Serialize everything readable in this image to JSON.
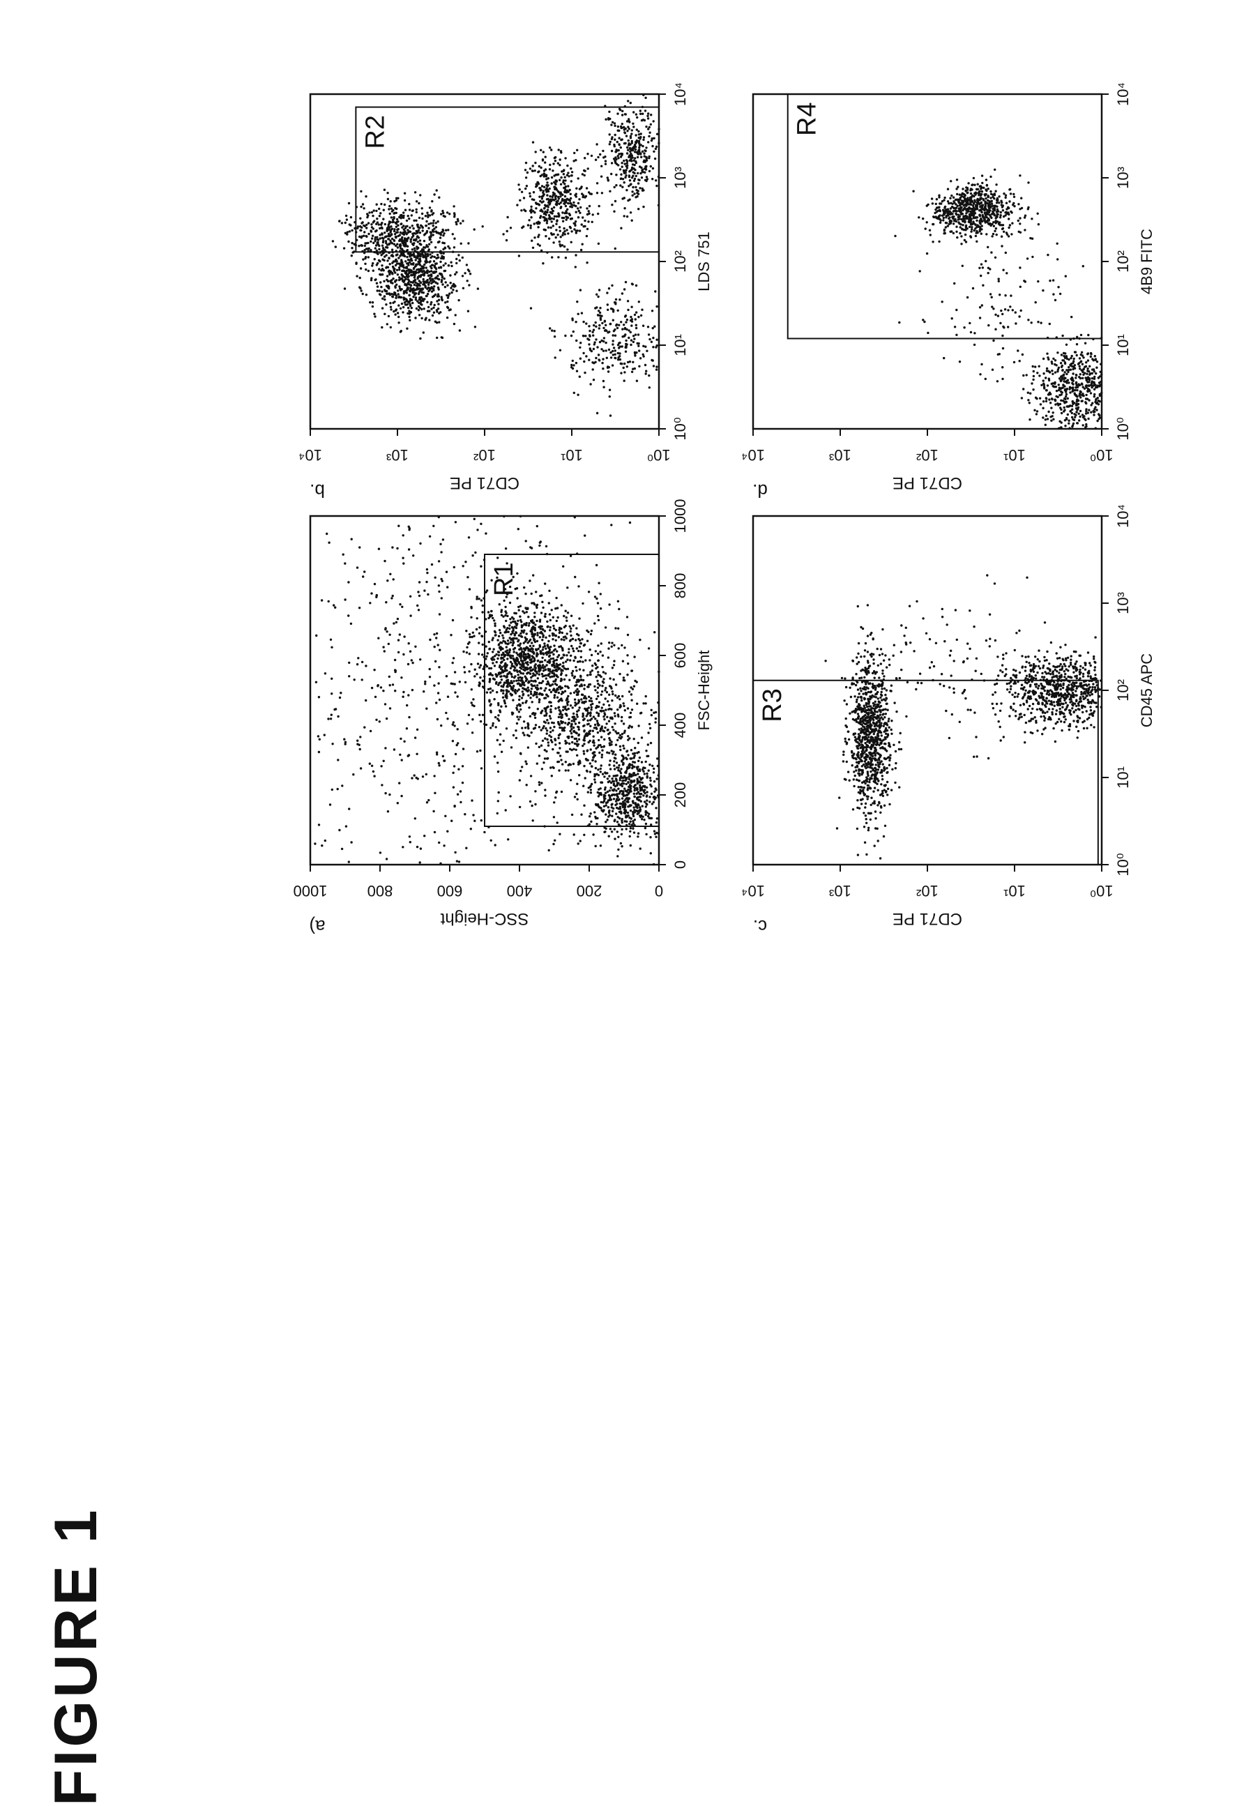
{
  "figure_title": "FIGURE 1",
  "chart_data": [
    {
      "type": "scatter",
      "panel_label": "a)",
      "xlabel": "FSC-Height",
      "ylabel": "SSC-Height",
      "xlim": [
        0,
        1000
      ],
      "ylim": [
        0,
        1000
      ],
      "x_scale": "linear",
      "y_scale": "linear",
      "x_ticks": [
        "0",
        "200",
        "400",
        "600",
        "800",
        "1000"
      ],
      "y_ticks": [
        "0",
        "200",
        "400",
        "600",
        "800",
        "1000"
      ],
      "gates": [
        {
          "label": "R1",
          "x": [
            110,
            890
          ],
          "y": [
            0,
            500
          ]
        }
      ],
      "clusters": [
        {
          "x": 580,
          "y": 380,
          "spread_x": 90,
          "spread_y": 70,
          "count": 900
        },
        {
          "x": 420,
          "y": 200,
          "spread_x": 120,
          "spread_y": 80,
          "count": 700
        },
        {
          "x": 200,
          "y": 90,
          "spread_x": 60,
          "spread_y": 50,
          "count": 500
        },
        {
          "x": 500,
          "y": 600,
          "spread_x": 300,
          "spread_y": 280,
          "count": 700
        }
      ]
    },
    {
      "type": "scatter",
      "panel_label": "b.",
      "xlabel": "LDS 751",
      "ylabel": "CD71 PE",
      "xlim": [
        1,
        10000
      ],
      "ylim": [
        1,
        10000
      ],
      "x_scale": "log",
      "y_scale": "log",
      "x_ticks": [
        "10⁰",
        "10¹",
        "10²",
        "10³",
        "10⁴"
      ],
      "y_ticks": [
        "10⁰",
        "10¹",
        "10²",
        "10³",
        "10⁴"
      ],
      "gates": [
        {
          "label": "R2",
          "x": [
            130,
            7000
          ],
          "y": [
            1,
            3000
          ]
        }
      ],
      "clusters": [
        {
          "x": 60,
          "y": 600,
          "spread_x": 0.25,
          "spread_y": 0.25,
          "count": 700
        },
        {
          "x": 220,
          "y": 1000,
          "spread_x": 0.2,
          "spread_y": 0.3,
          "count": 500
        },
        {
          "x": 500,
          "y": 15,
          "spread_x": 0.3,
          "spread_y": 0.2,
          "count": 450
        },
        {
          "x": 2000,
          "y": 2,
          "spread_x": 0.3,
          "spread_y": 0.15,
          "count": 350
        },
        {
          "x": 12,
          "y": 3,
          "spread_x": 0.3,
          "spread_y": 0.3,
          "count": 300
        }
      ]
    },
    {
      "type": "scatter",
      "panel_label": "c.",
      "xlabel": "CD45 APC",
      "ylabel": "CD71 PE",
      "xlim": [
        1,
        10000
      ],
      "ylim": [
        1,
        10000
      ],
      "x_scale": "log",
      "y_scale": "log",
      "x_ticks": [
        "10⁰",
        "10¹",
        "10²",
        "10³",
        "10⁴"
      ],
      "y_ticks": [
        "10⁰",
        "10¹",
        "10²",
        "10³",
        "10⁴"
      ],
      "gates": [
        {
          "label": "R3",
          "x": [
            1,
            130
          ],
          "y": [
            1.1,
            10000
          ]
        }
      ],
      "clusters": [
        {
          "x": 30,
          "y": 450,
          "spread_x": 0.45,
          "spread_y": 0.12,
          "count": 900
        },
        {
          "x": 100,
          "y": 3,
          "spread_x": 0.2,
          "spread_y": 0.3,
          "count": 700
        },
        {
          "x": 150,
          "y": 30,
          "spread_x": 0.4,
          "spread_y": 0.6,
          "count": 120
        }
      ]
    },
    {
      "type": "scatter",
      "panel_label": "d.",
      "xlabel": "4B9 FITC",
      "ylabel": "CD71 PE",
      "xlim": [
        1,
        10000
      ],
      "ylim": [
        1,
        10000
      ],
      "x_scale": "log",
      "y_scale": "log",
      "x_ticks": [
        "10⁰",
        "10¹",
        "10²",
        "10³",
        "10⁴"
      ],
      "y_ticks": [
        "10⁰",
        "10¹",
        "10²",
        "10³",
        "10⁴"
      ],
      "gates": [
        {
          "label": "R4",
          "x": [
            12,
            10000
          ],
          "y": [
            1,
            4000
          ]
        }
      ],
      "clusters": [
        {
          "x": 400,
          "y": 30,
          "spread_x": 0.15,
          "spread_y": 0.25,
          "count": 650
        },
        {
          "x": 3,
          "y": 2,
          "spread_x": 0.25,
          "spread_y": 0.25,
          "count": 550
        },
        {
          "x": 30,
          "y": 10,
          "spread_x": 0.5,
          "spread_y": 0.4,
          "count": 120
        }
      ]
    }
  ]
}
